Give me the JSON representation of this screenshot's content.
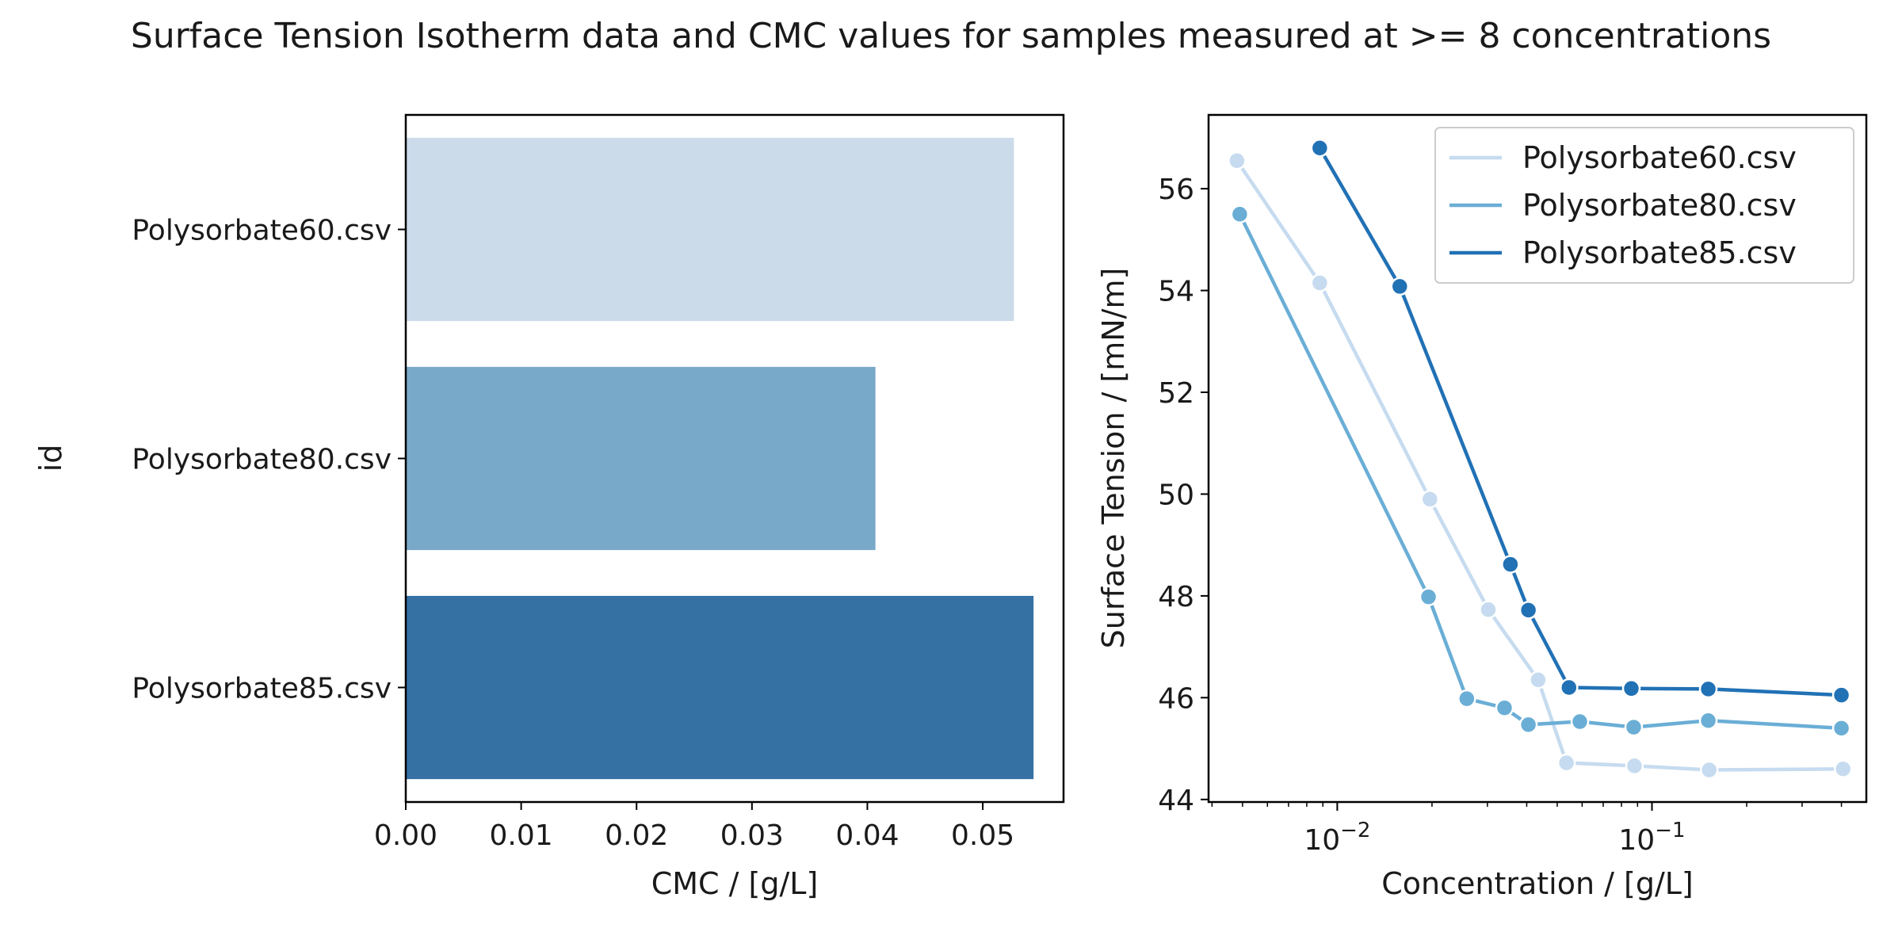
{
  "figure": {
    "suptitle": "Surface Tension Isotherm data and CMC values for samples measured at >= 8 concentrations"
  },
  "colors": {
    "bar": [
      "#cbdbea",
      "#79a9c8",
      "#3571a3"
    ],
    "line": [
      "#c6dbef",
      "#6aaed6",
      "#2171b5"
    ]
  },
  "chart_data": [
    {
      "type": "bar",
      "orientation": "horizontal",
      "categories": [
        "Polysorbate60.csv",
        "Polysorbate80.csv",
        "Polysorbate85.csv"
      ],
      "values": [
        0.0527,
        0.0407,
        0.0544
      ],
      "xlabel": "CMC / [g/L]",
      "ylabel": "id",
      "xlim": [
        0,
        0.057
      ],
      "xticks": [
        0.0,
        0.01,
        0.02,
        0.03,
        0.04,
        0.05
      ],
      "xtick_labels": [
        "0.00",
        "0.01",
        "0.02",
        "0.03",
        "0.04",
        "0.05"
      ],
      "grid": false
    },
    {
      "type": "line",
      "xscale": "log",
      "xlabel": "Concentration / [g/L]",
      "ylabel": "Surface Tension / [mN/m]",
      "xlim": [
        0.0039,
        0.48
      ],
      "ylim": [
        43.95,
        57.45
      ],
      "yticks": [
        44,
        46,
        48,
        50,
        52,
        54,
        56
      ],
      "xticks_major": [
        0.01,
        0.1
      ],
      "xtick_labels": [
        {
          "base": "10",
          "exp": "−2"
        },
        {
          "base": "10",
          "exp": "−1"
        }
      ],
      "legend_position": "top-right",
      "grid": false,
      "series": [
        {
          "name": "Polysorbate60.csv",
          "x": [
            0.0048,
            0.0088,
            0.0197,
            0.0302,
            0.0435,
            0.0535,
            0.088,
            0.152,
            0.405
          ],
          "y": [
            56.55,
            54.15,
            49.9,
            47.73,
            46.35,
            44.72,
            44.66,
            44.58,
            44.6
          ]
        },
        {
          "name": "Polysorbate80.csv",
          "x": [
            0.0049,
            0.0195,
            0.0258,
            0.034,
            0.0405,
            0.059,
            0.0875,
            0.151,
            0.4
          ],
          "y": [
            55.5,
            47.98,
            45.98,
            45.8,
            45.47,
            45.53,
            45.42,
            45.55,
            45.4
          ]
        },
        {
          "name": "Polysorbate85.csv",
          "x": [
            0.0088,
            0.0158,
            0.0355,
            0.0405,
            0.0545,
            0.086,
            0.151,
            0.4
          ],
          "y": [
            56.8,
            54.08,
            48.62,
            47.72,
            46.2,
            46.18,
            46.17,
            46.05
          ]
        }
      ]
    }
  ]
}
